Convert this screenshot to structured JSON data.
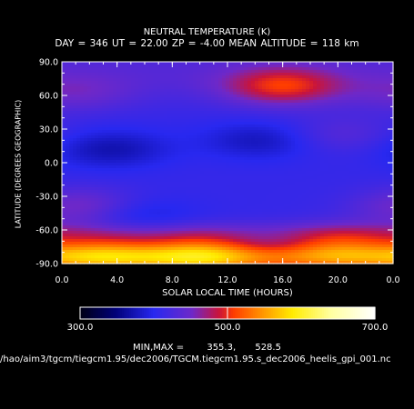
{
  "chart_data": {
    "type": "heatmap",
    "title": "NEUTRAL TEMPERATURE (K)",
    "subtitle": "DAY = 346   UT = 22.00   ZP =   -4.00   MEAN ALTITUDE = 118 km",
    "xlabel": "SOLAR LOCAL TIME (HOURS)",
    "ylabel": "LATITUDE (DEGREES GEOGRAPHIC)",
    "xlim": [
      0,
      24
    ],
    "ylim": [
      -90,
      90
    ],
    "x_ticks": [
      "0.0",
      "4.0",
      "8.0",
      "12.0",
      "16.0",
      "20.0",
      "0.0"
    ],
    "y_ticks": [
      "90.0",
      "60.0",
      "30.0",
      "0.0",
      "-30.0",
      "-60.0",
      "-90.0"
    ],
    "colorbar": {
      "min": 300.0,
      "max": 700.0,
      "ticks": [
        "300.0",
        "500.0",
        "700.0"
      ]
    },
    "min_max_label": "MIN,MAX =",
    "min_value": "355.3,",
    "max_value": "528.5",
    "features": [
      {
        "x": 3.5,
        "y": 12,
        "value": 365
      },
      {
        "x": 14.5,
        "y": 20,
        "value": 370
      },
      {
        "x": 16,
        "y": 68,
        "value": 505
      },
      {
        "x": 1,
        "y": 62,
        "value": 445
      },
      {
        "x": 20,
        "y": 25,
        "value": 440
      },
      {
        "x": 5,
        "y": -47,
        "value": 375
      },
      {
        "x": 1.5,
        "y": -40,
        "value": 470
      },
      {
        "x": 10,
        "y": -80,
        "value": 528
      },
      {
        "x": 3,
        "y": -80,
        "value": 510
      },
      {
        "x": 20,
        "y": -75,
        "value": 505
      }
    ]
  },
  "file_path": "/hao/aim3/tgcm/tiegcm1.95/dec2006/TGCM.tiegcm1.95.s_dec2006_heelis_gpi_001.nc"
}
